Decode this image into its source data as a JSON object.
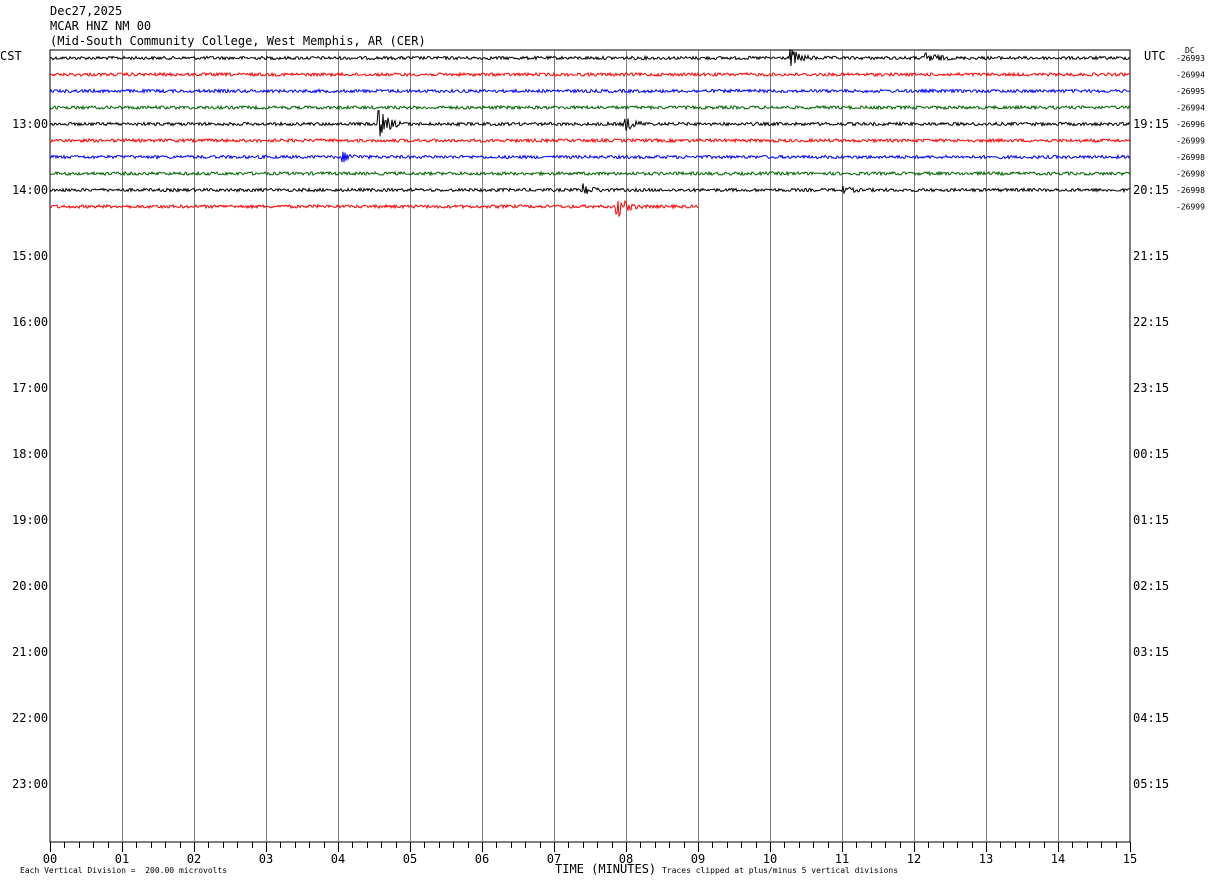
{
  "header": {
    "date": "Dec27,2025",
    "station": "MCAR HNZ NM 00",
    "location": "(Mid-South Community College, West Memphis, AR (CER)"
  },
  "left_axis_label": "CST",
  "right_axis_label": "UTC",
  "dc_label": "DC",
  "footer": {
    "scale_note": "Each Vertical Division =  200.00 microvolts",
    "xlabel": "TIME (MINUTES)",
    "clip_note": "Traces clipped at plus/minus 5 vertical divisions"
  },
  "colors": {
    "trace_cycle": [
      "#000000",
      "#ff0000",
      "#0000ff",
      "#006400"
    ],
    "grid": "#808080"
  },
  "chart_data": {
    "type": "line",
    "title": "MCAR HNZ NM 00",
    "xlabel": "TIME (MINUTES)",
    "xlim": [
      0,
      15
    ],
    "x_ticks": [
      "00",
      "01",
      "02",
      "03",
      "04",
      "05",
      "06",
      "07",
      "08",
      "09",
      "10",
      "11",
      "12",
      "13",
      "14",
      "15"
    ],
    "row_minutes": 15,
    "left_hour_labels": [
      "13:00",
      "14:00",
      "15:00",
      "16:00",
      "17:00",
      "18:00",
      "19:00",
      "20:00",
      "21:00",
      "22:00",
      "23:00"
    ],
    "right_hour_labels": [
      "19:15",
      "20:15",
      "21:15",
      "22:15",
      "23:15",
      "00:15",
      "01:15",
      "02:15",
      "03:15",
      "04:15",
      "05:15"
    ],
    "dc_offsets": [
      "-26993",
      "-26994",
      "-26995",
      "-26994",
      "-26996",
      "-26999",
      "-26998",
      "-26998",
      "-26998",
      "-26999"
    ],
    "rows_total": 48,
    "traces": [
      {
        "row": 0,
        "end_minute": 15,
        "events": [
          {
            "minute": 10.3,
            "amp": 8
          },
          {
            "minute": 12.2,
            "amp": 5
          }
        ]
      },
      {
        "row": 1,
        "end_minute": 15,
        "events": []
      },
      {
        "row": 2,
        "end_minute": 15,
        "events": []
      },
      {
        "row": 3,
        "end_minute": 15,
        "events": []
      },
      {
        "row": 4,
        "end_minute": 15,
        "events": [
          {
            "minute": 4.6,
            "amp": 12
          },
          {
            "minute": 8.0,
            "amp": 6
          }
        ]
      },
      {
        "row": 5,
        "end_minute": 15,
        "events": []
      },
      {
        "row": 6,
        "end_minute": 15,
        "events": [
          {
            "minute": 4.1,
            "amp": 4
          }
        ]
      },
      {
        "row": 7,
        "end_minute": 15,
        "events": []
      },
      {
        "row": 8,
        "end_minute": 15,
        "events": [
          {
            "minute": 7.4,
            "amp": 6
          },
          {
            "minute": 11.0,
            "amp": 3
          }
        ]
      },
      {
        "row": 9,
        "end_minute": 9,
        "events": [
          {
            "minute": 7.9,
            "amp": 9
          }
        ]
      }
    ]
  }
}
